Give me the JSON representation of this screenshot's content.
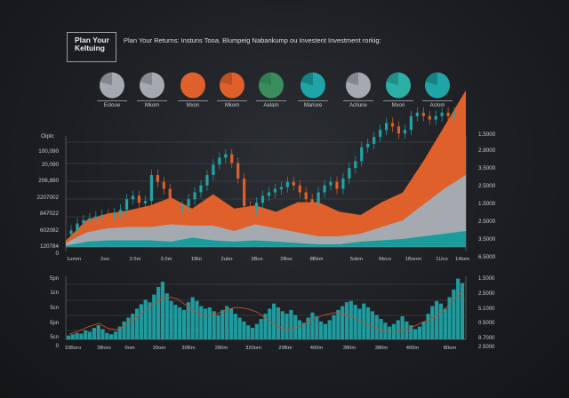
{
  "header": {
    "title_box": [
      "Plan Your",
      "Keltuing"
    ],
    "subtitle": "Plan Your Returns: Instuns Tooa. Blumpeig Nabankump ou Investent Investment rorkig:"
  },
  "colors": {
    "background": "#1c1e22",
    "orange": "#e0602b",
    "teal": "#1a9c9c",
    "gray": "#a5aab0",
    "green": "#3a8e5e",
    "gridline": "#4a4d52",
    "axis_text": "#c8cbd0"
  },
  "pies": [
    {
      "label": "Eclooe",
      "base": "#a5aab0",
      "accent": "#7c8086"
    },
    {
      "label": "Mkom",
      "base": "#a5aab0",
      "accent": "#80848a"
    },
    {
      "label": "Mxon",
      "base": "#e0602b",
      "accent": "#e0602b"
    },
    {
      "label": "Mkom",
      "base": "#e0602b",
      "accent": "#b44d24"
    },
    {
      "label": "Aelam",
      "base": "#3a8e5e",
      "accent": "#2f7a50"
    },
    {
      "label": "Mariore",
      "base": "#1fa5a8",
      "accent": "#147a7c"
    },
    {
      "label": "Acliune",
      "base": "#a5aab0",
      "accent": "#7b7f85"
    },
    {
      "label": "Mxon",
      "base": "#2bb0a6",
      "accent": "#1d8a83"
    },
    {
      "label": "Aclom",
      "base": "#1fa5a8",
      "accent": "#157b7e"
    }
  ],
  "chart_data": [
    {
      "type": "candlestick+area",
      "title": "",
      "ylabel": "Oiplc",
      "yticks_left": [
        "100,090",
        "20,090",
        "206,880",
        "2207002",
        "847022",
        "602082",
        "120784",
        "0"
      ],
      "yticks_right": [
        "1.5000",
        "2.8000",
        "3.5000",
        "2.5000",
        "1.5000",
        "2.5000",
        "3.5000",
        "6.5000"
      ],
      "xticks": [
        "1umm",
        "2oo",
        "3.5m",
        "3.0m",
        "1Bto",
        "2ubo",
        "3Bco",
        "2Boo",
        "8Bkm",
        "5sbm",
        "Mxco",
        "1Bonm",
        "1Uco",
        "14tom"
      ],
      "grid": true,
      "series": [
        {
          "name": "candles",
          "color_up": "#1fa5a8",
          "color_down": "#e0602b",
          "values": [
            8,
            12,
            14,
            15,
            16,
            17,
            16,
            18,
            20,
            26,
            28,
            24,
            25,
            40,
            36,
            32,
            22,
            20,
            22,
            26,
            30,
            34,
            40,
            46,
            50,
            52,
            47,
            38,
            22,
            20,
            24,
            28,
            30,
            32,
            33,
            36,
            34,
            30,
            26,
            24,
            30,
            34,
            36,
            32,
            38,
            44,
            48,
            56,
            58,
            62,
            66,
            70,
            68,
            64,
            66,
            74,
            76,
            74,
            72,
            74,
            76,
            74,
            76,
            75
          ]
        },
        {
          "name": "orange-area",
          "color": "#e0602b",
          "values": [
            2,
            10,
            12,
            13,
            16,
            18,
            15,
            22,
            16,
            14,
            12,
            20,
            22,
            16,
            14,
            18,
            20,
            30,
            42,
            56
          ]
        },
        {
          "name": "gray-area",
          "color": "#a5aab0",
          "values": [
            2,
            7,
            9,
            10,
            10,
            13,
            9,
            11,
            8,
            12,
            10,
            8,
            6,
            6,
            6,
            10,
            14,
            24,
            34,
            42
          ]
        },
        {
          "name": "teal-area",
          "color": "#1a9c9c",
          "values": [
            1,
            4,
            5,
            5,
            5,
            4,
            7,
            5,
            4,
            5,
            4,
            3,
            2,
            2,
            4,
            5,
            6,
            8,
            10,
            12
          ]
        }
      ]
    },
    {
      "type": "bar+line",
      "title": "",
      "yticks_left": [
        "5pn",
        "1cn",
        "5cn",
        "5pn",
        "5cn",
        "0"
      ],
      "yticks_right": [
        "1.5000",
        "2.5000",
        "5.1000",
        "0.5000",
        "8.7000",
        "2.5000"
      ],
      "xticks": [
        "10Boro",
        "3Boro",
        "0om",
        "20om",
        "30Bm",
        "280m",
        "320om",
        "29Bm",
        "400m",
        "380m",
        "380m",
        "400m",
        "80om"
      ],
      "grid": true,
      "series": [
        {
          "name": "volume",
          "color": "#1fa5a8",
          "values": [
            6,
            8,
            10,
            9,
            14,
            12,
            18,
            22,
            16,
            10,
            8,
            12,
            20,
            28,
            34,
            40,
            48,
            55,
            62,
            58,
            70,
            82,
            90,
            72,
            60,
            54,
            50,
            46,
            58,
            66,
            60,
            52,
            48,
            50,
            44,
            38,
            46,
            52,
            48,
            40,
            34,
            28,
            22,
            18,
            24,
            32,
            40,
            48,
            56,
            50,
            44,
            40,
            46,
            38,
            30,
            26,
            34,
            42,
            36,
            28,
            24,
            30,
            38,
            46,
            52,
            58,
            60,
            54,
            48,
            56,
            50,
            44,
            38,
            32,
            26,
            20,
            24,
            30,
            36,
            28,
            22,
            16,
            20,
            28,
            40,
            52,
            60,
            56,
            48,
            66,
            78,
            95,
            88
          ]
        },
        {
          "name": "trend-line",
          "color": "#c0502a",
          "values": [
            10,
            16,
            24,
            30,
            20,
            18,
            30,
            44,
            58,
            72,
            80,
            76,
            62,
            50,
            44,
            48,
            56,
            60,
            58,
            52,
            40,
            26,
            18,
            20,
            30,
            40,
            46,
            50,
            48,
            40,
            30,
            22,
            16,
            14,
            18,
            24,
            32,
            40,
            52,
            72,
            90
          ]
        }
      ]
    }
  ]
}
